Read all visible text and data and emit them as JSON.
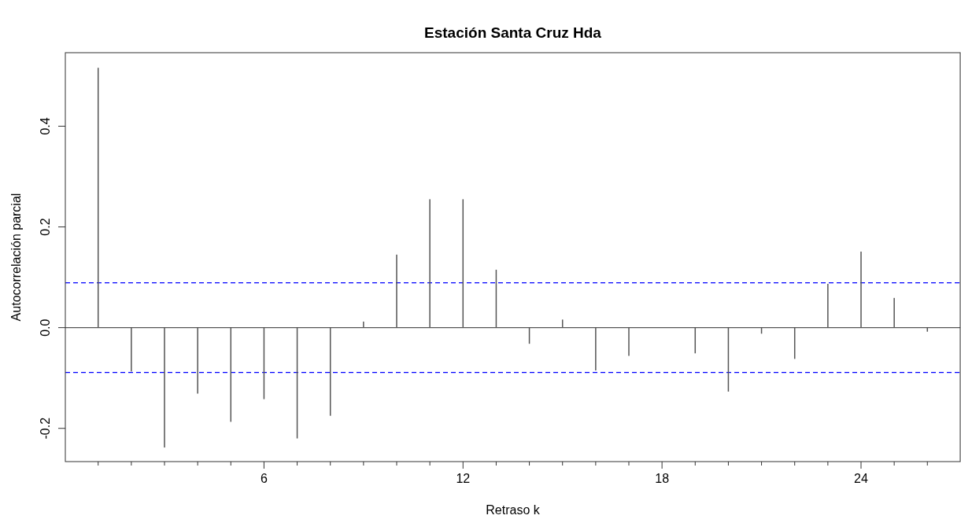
{
  "chart_data": {
    "type": "bar",
    "title": "Estación Santa Cruz Hda",
    "xlabel": "Retraso k",
    "ylabel": "Autocorrelación parcial",
    "x": [
      1,
      2,
      3,
      4,
      5,
      6,
      7,
      8,
      9,
      10,
      11,
      12,
      13,
      14,
      15,
      16,
      17,
      18,
      19,
      20,
      21,
      22,
      23,
      24,
      25,
      26
    ],
    "series": [
      {
        "color": "#555555",
        "values": [
          0.516,
          -0.087,
          -0.238,
          -0.131,
          -0.187,
          -0.142,
          -0.22,
          -0.175,
          0.012,
          0.145,
          0.255,
          0.255,
          0.115,
          -0.032,
          0.016,
          -0.085,
          -0.056,
          0,
          -0.051,
          -0.127,
          -0.012,
          -0.062,
          0.087,
          0.151,
          0.059,
          -0.008
        ]
      }
    ],
    "xlim": [
      0.01,
      26.99
    ],
    "xticks": [
      {
        "value": 1,
        "label": null
      },
      {
        "value": 2,
        "label": null
      },
      {
        "value": 3,
        "label": null
      },
      {
        "value": 4,
        "label": null
      },
      {
        "value": 5,
        "label": null
      },
      6,
      {
        "value": 7,
        "label": null
      },
      {
        "value": 8,
        "label": null
      },
      {
        "value": 9,
        "label": null
      },
      {
        "value": 10,
        "label": null
      },
      {
        "value": 11,
        "label": null
      },
      12,
      {
        "value": 13,
        "label": null
      },
      {
        "value": 14,
        "label": null
      },
      {
        "value": 15,
        "label": null
      },
      {
        "value": 16,
        "label": null
      },
      {
        "value": 17,
        "label": null
      },
      18,
      {
        "value": 19,
        "label": null
      },
      {
        "value": 20,
        "label": null
      },
      {
        "value": 21,
        "label": null
      },
      {
        "value": 22,
        "label": null
      },
      {
        "value": 23,
        "label": null
      },
      24,
      {
        "value": 25,
        "label": null
      },
      {
        "value": 26,
        "label": null
      }
    ],
    "ylim": [
      -0.266,
      0.546
    ],
    "yticks": [
      {
        "value": -0.2,
        "label": "-0.2"
      },
      {
        "value": 0,
        "label": "0.0"
      },
      {
        "value": 0.2,
        "label": "0.2"
      },
      {
        "value": 0.4,
        "label": "0.4"
      }
    ],
    "ref_lines": [
      {
        "axis": "y",
        "value": 0,
        "color": "#555555",
        "line_style": "solid"
      },
      {
        "axis": "y",
        "value": 0.089,
        "color": "#0000ff",
        "line_style": "dashed"
      },
      {
        "axis": "y",
        "value": -0.089,
        "color": "#0000ff",
        "line_style": "dashed"
      }
    ],
    "grid": false
  }
}
